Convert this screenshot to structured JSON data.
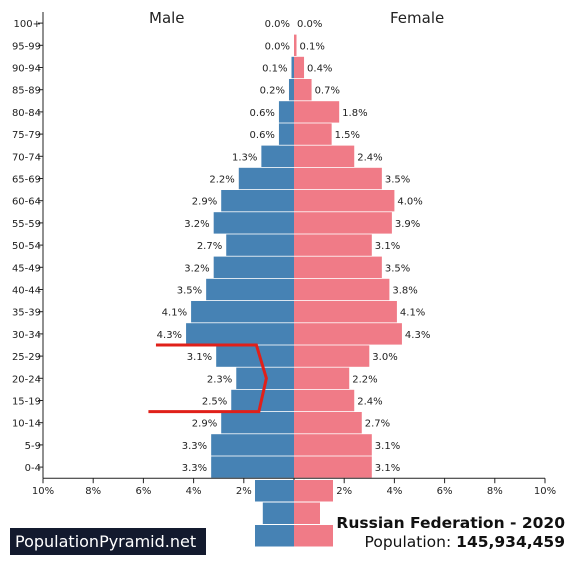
{
  "header": {
    "male_label": "Male",
    "female_label": "Female"
  },
  "footer": {
    "brand": "PopulationPyramid.net",
    "title": "Russian Federation - 2020",
    "population_label": "Population:",
    "population_value": "145,934,459"
  },
  "colors": {
    "male": "#4682b4",
    "female": "#f07b87",
    "annotation": "#e0201a"
  },
  "chart_data": {
    "type": "bar",
    "orientation": "horizontal",
    "categories": [
      "100+",
      "95-99",
      "90-94",
      "85-89",
      "80-84",
      "75-79",
      "70-74",
      "65-69",
      "60-64",
      "55-59",
      "50-54",
      "45-49",
      "40-44",
      "35-39",
      "30-34",
      "25-29",
      "20-24",
      "15-19",
      "10-14",
      "5-9",
      "0-4"
    ],
    "series": [
      {
        "name": "Male",
        "values": [
          0.0,
          0.0,
          0.1,
          0.2,
          0.6,
          0.6,
          1.3,
          2.2,
          2.9,
          3.2,
          2.7,
          3.2,
          3.5,
          4.1,
          4.3,
          3.1,
          2.3,
          2.5,
          2.9,
          3.3,
          3.3
        ],
        "labels": [
          "0.0%",
          "0.0%",
          "0.1%",
          "0.2%",
          "0.6%",
          "0.6%",
          "1.3%",
          "2.2%",
          "2.9%",
          "3.2%",
          "2.7%",
          "3.2%",
          "3.5%",
          "4.1%",
          "4.3%",
          "3.1%",
          "2.3%",
          "2.5%",
          "2.9%",
          "3.3%",
          "3.3%"
        ]
      },
      {
        "name": "Female",
        "values": [
          0.0,
          0.1,
          0.4,
          0.7,
          1.8,
          1.5,
          2.4,
          3.5,
          4.0,
          3.9,
          3.1,
          3.5,
          3.8,
          4.1,
          4.3,
          3.0,
          2.2,
          2.4,
          2.7,
          3.1,
          3.1
        ],
        "labels": [
          "0.0%",
          "0.1%",
          "0.4%",
          "0.7%",
          "1.8%",
          "1.5%",
          "2.4%",
          "3.5%",
          "4.0%",
          "3.9%",
          "3.1%",
          "3.5%",
          "3.8%",
          "4.1%",
          "4.3%",
          "3.0%",
          "2.2%",
          "2.4%",
          "2.7%",
          "3.1%",
          "3.1%"
        ]
      }
    ],
    "xlim": [
      -10,
      10
    ],
    "x_ticks": [
      -10,
      -8,
      -6,
      -4,
      -2,
      0,
      2,
      4,
      6,
      8,
      10
    ],
    "x_tick_labels": [
      "10%",
      "8%",
      "6%",
      "4%",
      "2%",
      "0%",
      "2%",
      "4%",
      "6%",
      "8%",
      "10%"
    ],
    "annotation": {
      "type": "polyline",
      "points": [
        [
          -5.5,
          "30-34/25-29"
        ],
        [
          -1.5,
          "30-34/25-29"
        ],
        [
          -1.1,
          "20-24"
        ],
        [
          -1.4,
          "15-19/10-14"
        ],
        [
          -5.8,
          "15-19/10-14"
        ]
      ]
    },
    "logo_bars": {
      "male": [
        1.5,
        1.2,
        1.5
      ],
      "female": [
        1.5,
        1.0,
        1.5
      ]
    }
  }
}
